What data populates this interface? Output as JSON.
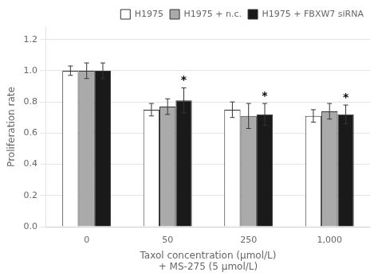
{
  "chart_data": {
    "type": "bar",
    "categories": [
      "0",
      "50",
      "250",
      "1,000"
    ],
    "series": [
      {
        "name": "H1975",
        "color": "#FFFFFF",
        "values": [
          1.0,
          0.75,
          0.75,
          0.71
        ],
        "errors": [
          0.03,
          0.04,
          0.05,
          0.04
        ]
      },
      {
        "name": "H1975 + n.c.",
        "color": "#AAAAAA",
        "values": [
          1.0,
          0.77,
          0.71,
          0.74
        ],
        "errors": [
          0.05,
          0.05,
          0.08,
          0.05
        ]
      },
      {
        "name": "H1975 + FBXW7 siRNA",
        "color": "#1a1a1a",
        "values": [
          1.0,
          0.81,
          0.72,
          0.72
        ],
        "errors": [
          0.05,
          0.08,
          0.07,
          0.06
        ]
      }
    ],
    "ylabel": "Proliferation rate",
    "xlabel": [
      "Taxol concentration (μmol/L)",
      "+ MS-275 (5 μmol/L)"
    ],
    "ylim": [
      0,
      1.28
    ],
    "yticks": [
      {
        "value": 0,
        "label": "0.0"
      },
      0.2,
      0.4,
      0.6,
      0.8,
      {
        "value": 1.0,
        "label": "1.0"
      },
      1.2
    ],
    "grid": true,
    "legend": "upper right",
    "annotations": [
      {
        "text": "*",
        "series": "H1975 + FBXW7 siRNA",
        "category": "50"
      },
      {
        "text": "*",
        "series": "H1975 + FBXW7 siRNA",
        "category": "250"
      },
      {
        "text": "*",
        "series": "H1975 + FBXW7 siRNA",
        "category": "1,000"
      }
    ]
  }
}
